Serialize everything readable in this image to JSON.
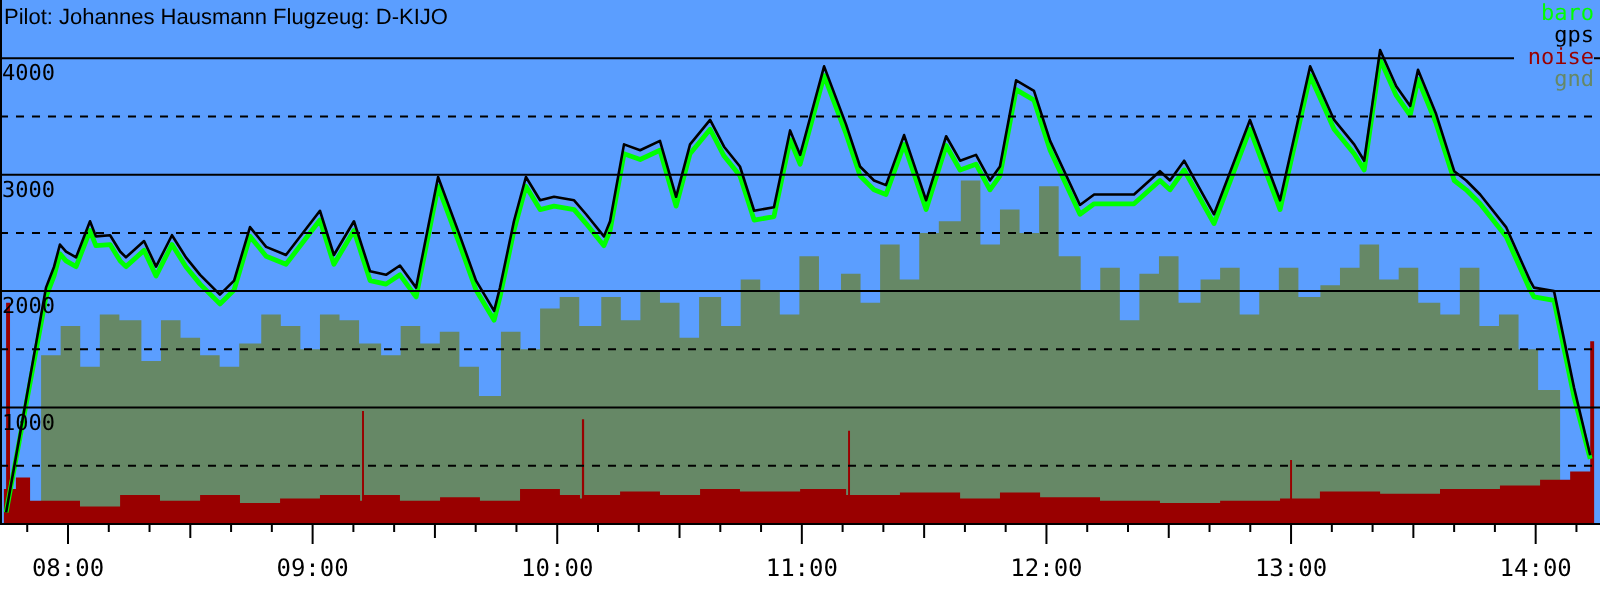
{
  "chart_data": {
    "type": "line",
    "title": "Pilot: Johannes Hausmann Flugzeug: D-KIJO",
    "xlim": [
      7.722,
      14.263
    ],
    "ylim": [
      0,
      4500
    ],
    "xticks": [
      {
        "value": 7.8333,
        "label": null
      },
      {
        "value": 8,
        "label": "08:00"
      },
      {
        "value": 8.1667,
        "label": null
      },
      {
        "value": 8.3333,
        "label": null
      },
      {
        "value": 8.5,
        "label": null
      },
      {
        "value": 8.6667,
        "label": null
      },
      {
        "value": 8.8333,
        "label": null
      },
      {
        "value": 9,
        "label": "09:00"
      },
      {
        "value": 9.1667,
        "label": null
      },
      {
        "value": 9.3333,
        "label": null
      },
      {
        "value": 9.5,
        "label": null
      },
      {
        "value": 9.6667,
        "label": null
      },
      {
        "value": 9.8333,
        "label": null
      },
      {
        "value": 10,
        "label": "10:00"
      },
      {
        "value": 10.1667,
        "label": null
      },
      {
        "value": 10.3333,
        "label": null
      },
      {
        "value": 10.5,
        "label": null
      },
      {
        "value": 10.6667,
        "label": null
      },
      {
        "value": 10.8333,
        "label": null
      },
      {
        "value": 11,
        "label": "11:00"
      },
      {
        "value": 11.1667,
        "label": null
      },
      {
        "value": 11.3333,
        "label": null
      },
      {
        "value": 11.5,
        "label": null
      },
      {
        "value": 11.6667,
        "label": null
      },
      {
        "value": 11.8333,
        "label": null
      },
      {
        "value": 12,
        "label": "12:00"
      },
      {
        "value": 12.1667,
        "label": null
      },
      {
        "value": 12.3333,
        "label": null
      },
      {
        "value": 12.5,
        "label": null
      },
      {
        "value": 12.6667,
        "label": null
      },
      {
        "value": 12.8333,
        "label": null
      },
      {
        "value": 13,
        "label": "13:00"
      },
      {
        "value": 13.1667,
        "label": null
      },
      {
        "value": 13.3333,
        "label": null
      },
      {
        "value": 13.5,
        "label": null
      },
      {
        "value": 13.6667,
        "label": null
      },
      {
        "value": 13.8333,
        "label": null
      },
      {
        "value": 14,
        "label": "14:00"
      },
      {
        "value": 14.1667,
        "label": null
      }
    ],
    "yticks": [
      {
        "value": 500,
        "label": null
      },
      1000,
      {
        "value": 1500,
        "label": null
      },
      2000,
      {
        "value": 2500,
        "label": null
      },
      3000,
      {
        "value": 3500,
        "label": null
      },
      4000
    ],
    "grid": "y",
    "legend": "top right",
    "marker": "none",
    "series": [
      {
        "name": "baro",
        "color": "#00ff00",
        "x": [
          7.747,
          7.91,
          7.943,
          7.967,
          7.992,
          8.033,
          8.09,
          8.114,
          8.172,
          8.213,
          8.237,
          8.311,
          8.36,
          8.425,
          8.482,
          8.54,
          8.621,
          8.679,
          8.744,
          8.81,
          8.891,
          9.03,
          9.087,
          9.169,
          9.235,
          9.3,
          9.357,
          9.423,
          9.513,
          9.603,
          9.668,
          9.742,
          9.766,
          9.823,
          9.872,
          9.93,
          9.987,
          10.069,
          10.118,
          10.191,
          10.216,
          10.273,
          10.339,
          10.42,
          10.486,
          10.543,
          10.625,
          10.682,
          10.747,
          10.805,
          10.886,
          10.952,
          10.993,
          11.091,
          11.181,
          11.238,
          11.295,
          11.344,
          11.418,
          11.508,
          11.59,
          11.647,
          11.712,
          11.769,
          11.81,
          11.876,
          11.949,
          12.015,
          12.137,
          12.195,
          12.358,
          12.464,
          12.505,
          12.563,
          12.685,
          12.832,
          12.955,
          13.078,
          13.176,
          13.258,
          13.299,
          13.364,
          13.43,
          13.487,
          13.519,
          13.593,
          13.667,
          13.716,
          13.773,
          13.879,
          13.977,
          13.993,
          14.075,
          14.157,
          14.223
        ],
        "values": [
          100,
          1950,
          2130,
          2320,
          2260,
          2210,
          2520,
          2390,
          2400,
          2260,
          2210,
          2350,
          2130,
          2400,
          2210,
          2060,
          1890,
          2010,
          2470,
          2300,
          2230,
          2610,
          2230,
          2520,
          2090,
          2060,
          2140,
          1950,
          2900,
          2390,
          2010,
          1750,
          1950,
          2520,
          2900,
          2700,
          2730,
          2700,
          2580,
          2390,
          2520,
          3180,
          3130,
          3210,
          2730,
          3180,
          3390,
          3160,
          2990,
          2610,
          2640,
          3300,
          3090,
          3850,
          3350,
          2990,
          2870,
          2830,
          3260,
          2700,
          3250,
          3040,
          3090,
          2870,
          2990,
          3730,
          3640,
          3210,
          2660,
          2750,
          2750,
          2950,
          2870,
          3040,
          2580,
          3390,
          2700,
          3850,
          3390,
          3180,
          3040,
          3990,
          3680,
          3510,
          3820,
          3440,
          2950,
          2870,
          2750,
          2470,
          2010,
          1950,
          1920,
          1090,
          560
        ]
      },
      {
        "name": "gps",
        "color": "#000000",
        "x": [
          7.747,
          7.91,
          7.943,
          7.967,
          7.992,
          8.033,
          8.09,
          8.114,
          8.172,
          8.213,
          8.237,
          8.311,
          8.36,
          8.425,
          8.482,
          8.54,
          8.621,
          8.679,
          8.744,
          8.81,
          8.891,
          9.03,
          9.087,
          9.169,
          9.235,
          9.3,
          9.357,
          9.423,
          9.513,
          9.603,
          9.668,
          9.742,
          9.766,
          9.823,
          9.872,
          9.93,
          9.987,
          10.069,
          10.118,
          10.191,
          10.216,
          10.273,
          10.339,
          10.42,
          10.486,
          10.543,
          10.625,
          10.682,
          10.747,
          10.805,
          10.886,
          10.952,
          10.993,
          11.091,
          11.181,
          11.238,
          11.295,
          11.344,
          11.418,
          11.508,
          11.59,
          11.647,
          11.712,
          11.769,
          11.81,
          11.876,
          11.949,
          12.015,
          12.137,
          12.195,
          12.358,
          12.464,
          12.505,
          12.563,
          12.685,
          12.832,
          12.955,
          13.078,
          13.176,
          13.258,
          13.299,
          13.364,
          13.43,
          13.487,
          13.519,
          13.593,
          13.667,
          13.716,
          13.773,
          13.879,
          13.977,
          13.993,
          14.075,
          14.157,
          14.223
        ],
        "values": [
          100,
          2030,
          2210,
          2400,
          2340,
          2290,
          2600,
          2470,
          2480,
          2340,
          2290,
          2430,
          2210,
          2480,
          2290,
          2140,
          1970,
          2090,
          2550,
          2380,
          2310,
          2690,
          2310,
          2600,
          2170,
          2140,
          2220,
          2030,
          2980,
          2470,
          2090,
          1830,
          2030,
          2600,
          2980,
          2780,
          2810,
          2780,
          2660,
          2470,
          2600,
          3260,
          3210,
          3290,
          2810,
          3260,
          3470,
          3240,
          3070,
          2690,
          2720,
          3380,
          3170,
          3930,
          3430,
          3070,
          2950,
          2910,
          3340,
          2780,
          3330,
          3120,
          3170,
          2950,
          3070,
          3810,
          3720,
          3290,
          2740,
          2830,
          2830,
          3030,
          2950,
          3120,
          2660,
          3470,
          2780,
          3930,
          3470,
          3260,
          3120,
          4070,
          3760,
          3590,
          3900,
          3520,
          3030,
          2950,
          2830,
          2550,
          2090,
          2030,
          2000,
          1170,
          590
        ]
      },
      {
        "name": "noise",
        "color": "#990000",
        "type": "area",
        "x": [
          7.738,
          7.747,
          7.763,
          7.787,
          7.845,
          8.049,
          8.213,
          8.376,
          8.54,
          8.703,
          8.867,
          9.03,
          9.194,
          9.202,
          9.21,
          9.357,
          9.521,
          9.684,
          9.848,
          10.011,
          10.093,
          10.101,
          10.11,
          10.257,
          10.42,
          10.584,
          10.747,
          10.993,
          11.181,
          11.189,
          11.197,
          11.401,
          11.647,
          11.81,
          11.974,
          12.219,
          12.464,
          12.71,
          12.955,
          12.996,
          13.004,
          13.118,
          13.364,
          13.609,
          13.854,
          14.018,
          14.141,
          14.223,
          14.239
        ],
        "values": [
          300,
          1900,
          300,
          400,
          200,
          150,
          250,
          200,
          250,
          180,
          220,
          250,
          200,
          970,
          250,
          200,
          230,
          200,
          300,
          250,
          220,
          900,
          250,
          280,
          250,
          300,
          280,
          300,
          250,
          800,
          250,
          270,
          220,
          270,
          230,
          200,
          180,
          200,
          220,
          550,
          220,
          280,
          260,
          300,
          330,
          380,
          450,
          1570,
          450
        ]
      },
      {
        "name": "gnd",
        "color": "#668866",
        "type": "area",
        "x": [
          7.89,
          7.97,
          8.05,
          8.13,
          8.21,
          8.3,
          8.38,
          8.46,
          8.54,
          8.62,
          8.7,
          8.79,
          8.87,
          8.95,
          9.03,
          9.11,
          9.19,
          9.28,
          9.36,
          9.44,
          9.52,
          9.6,
          9.68,
          9.77,
          9.85,
          9.93,
          10.01,
          10.09,
          10.18,
          10.26,
          10.34,
          10.42,
          10.5,
          10.58,
          10.67,
          10.75,
          10.83,
          10.91,
          10.99,
          11.07,
          11.16,
          11.24,
          11.32,
          11.4,
          11.48,
          11.56,
          11.65,
          11.73,
          11.81,
          11.89,
          11.97,
          12.05,
          12.14,
          12.22,
          12.3,
          12.38,
          12.46,
          12.54,
          12.63,
          12.71,
          12.79,
          12.87,
          12.95,
          13.03,
          13.12,
          13.2,
          13.28,
          13.36,
          13.44,
          13.52,
          13.61,
          13.69,
          13.77,
          13.85,
          13.93,
          14.01,
          14.1
        ],
        "values": [
          1450,
          1700,
          1350,
          1800,
          1750,
          1400,
          1750,
          1600,
          1450,
          1350,
          1550,
          1800,
          1700,
          1500,
          1800,
          1750,
          1550,
          1450,
          1700,
          1550,
          1650,
          1350,
          1100,
          1650,
          1500,
          1850,
          1950,
          1700,
          1950,
          1750,
          2000,
          1900,
          1600,
          1950,
          1700,
          2100,
          2000,
          1800,
          2300,
          2000,
          2150,
          1900,
          2400,
          2100,
          2500,
          2600,
          2950,
          2400,
          2700,
          2500,
          2900,
          2300,
          2000,
          2200,
          1750,
          2150,
          2300,
          1900,
          2100,
          2200,
          1800,
          2000,
          2200,
          1950,
          2050,
          2200,
          2400,
          2100,
          2200,
          1900,
          1800,
          2200,
          1700,
          1800,
          1500,
          1150,
          600
        ]
      }
    ]
  }
}
